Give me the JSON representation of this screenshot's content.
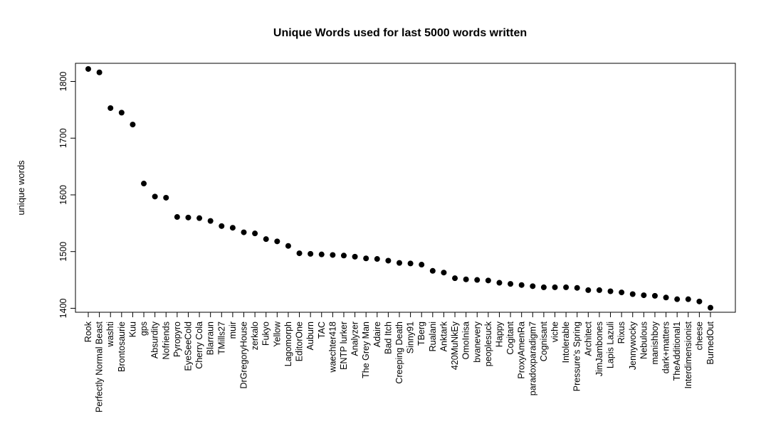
{
  "chart_data": {
    "type": "scatter",
    "title": "Unique Words used for last 5000 words written",
    "xlabel": "",
    "ylabel": "unique words",
    "ylim": [
      1393,
      1832
    ],
    "yticks": [
      1400,
      1500,
      1600,
      1700,
      1800
    ],
    "grid": false,
    "legend": "none",
    "point_color": "#000000",
    "categories": [
      "Rook",
      "Perfectly Normal Beast",
      "washti",
      "Brontosaurie",
      "Kuu",
      "gps",
      "Absurdity",
      "Nofriends",
      "Pyropyro",
      "EyeSeeCold",
      "Cherry Cola",
      "Blarraun",
      "TMills27",
      "muir",
      "DrGregoryHouse",
      "zerkalo",
      "Fukyo",
      "Yellow",
      "Lagomorph",
      "EditorOne",
      "Auburn",
      "TAC",
      "waechter418",
      "ENTP lurker",
      "Analyzer",
      "The Grey Man",
      "Adaire",
      "Bad Itch",
      "Creeping Death",
      "Sinny91",
      "TBerg",
      "Rualani",
      "Anktark",
      "420MuNkEy",
      "OmoInisa",
      "bvanevery",
      "peoplesuck",
      "Happy",
      "Cogitant",
      "ProxyAmenRa",
      "paradoxparadigm7",
      "Cognisant",
      "viche",
      "Intolerable",
      "Pressure's Spring",
      "Architect",
      "JimJambones",
      "Lapis Lazuli",
      "Rixus",
      "Jennywocky",
      "Nebulous",
      "manishboy",
      "dark+matters",
      "TheAdditional1",
      "Interdimensionist",
      "cheese",
      "BurnedOut"
    ],
    "values": [
      1822,
      1816,
      1753,
      1745,
      1724,
      1620,
      1597,
      1595,
      1561,
      1560,
      1559,
      1554,
      1545,
      1542,
      1534,
      1532,
      1522,
      1518,
      1510,
      1497,
      1496,
      1495,
      1494,
      1493,
      1491,
      1488,
      1487,
      1484,
      1480,
      1479,
      1477,
      1466,
      1463,
      1453,
      1451,
      1450,
      1449,
      1445,
      1443,
      1441,
      1439,
      1437,
      1437,
      1437,
      1436,
      1432,
      1432,
      1430,
      1428,
      1425,
      1423,
      1422,
      1419,
      1416,
      1416,
      1412,
      1401
    ]
  }
}
